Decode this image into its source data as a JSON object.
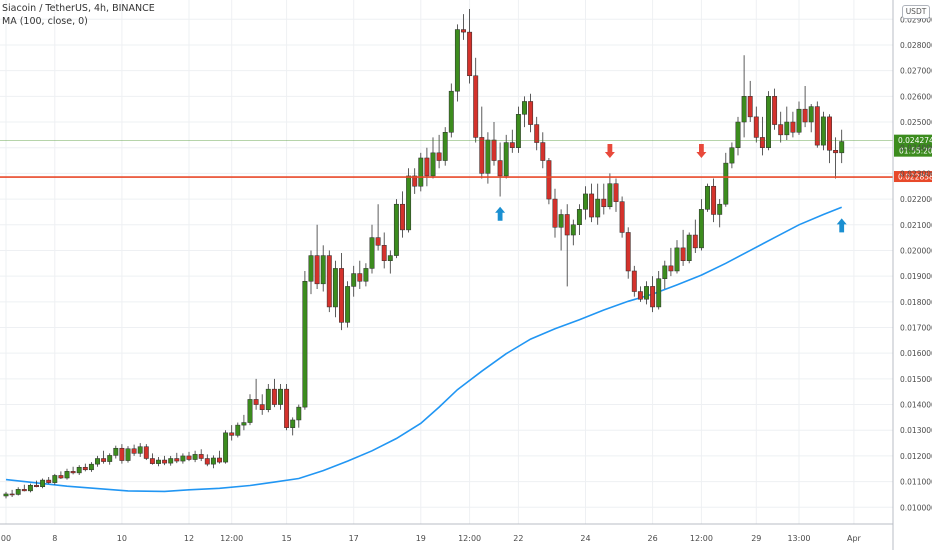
{
  "legend": {
    "symbol_line": "Siacoin / TetherUS, 4h, BINANCE",
    "indicator_line": "MA (100, close, 0)"
  },
  "currency_button": "USDT",
  "colors": {
    "up": "#53b987",
    "up_body": "#3c8c1e",
    "down": "#d4322c",
    "ma": "#2196f3",
    "level": "#e8492a",
    "arrow_up": "#1a8fd1",
    "arrow_down": "#e8493b",
    "grid": "#eef0f3",
    "axis_text": "#4a4a4a"
  },
  "chart_data": {
    "type": "candlestick",
    "title": "Siacoin / TetherUS, 4h, BINANCE",
    "ylim": [
      0.00935,
      0.02975
    ],
    "y_ticks": [
      "0.010000",
      "0.011000",
      "0.012000",
      "0.013000",
      "0.014000",
      "0.015000",
      "0.016000",
      "0.017000",
      "0.018000",
      "0.019000",
      "0.020000",
      "0.021000",
      "0.022000",
      "0.023000",
      "0.024000",
      "0.025000",
      "0.026000",
      "0.027000",
      "0.028000",
      "0.029000"
    ],
    "x_ticks": [
      {
        "label": "00",
        "i": 0
      },
      {
        "label": "8",
        "i": 8
      },
      {
        "label": "10",
        "i": 19
      },
      {
        "label": "12",
        "i": 30
      },
      {
        "label": "12:00",
        "i": 37
      },
      {
        "label": "15",
        "i": 46
      },
      {
        "label": "17",
        "i": 57
      },
      {
        "label": "19",
        "i": 68
      },
      {
        "label": "12:00",
        "i": 76
      },
      {
        "label": "22",
        "i": 84
      },
      {
        "label": "24",
        "i": 95
      },
      {
        "label": "26",
        "i": 106
      },
      {
        "label": "12:00",
        "i": 114
      },
      {
        "label": "29",
        "i": 123
      },
      {
        "label": "13:00",
        "i": 130
      },
      {
        "label": "Apr",
        "i": 139
      }
    ],
    "candles": [
      [
        0.01044,
        0.0106,
        0.01035,
        0.01052
      ],
      [
        0.01052,
        0.01068,
        0.0104,
        0.0105
      ],
      [
        0.0105,
        0.01078,
        0.01046,
        0.0107
      ],
      [
        0.0107,
        0.01088,
        0.01062,
        0.01064
      ],
      [
        0.01064,
        0.01092,
        0.01058,
        0.01086
      ],
      [
        0.01086,
        0.01104,
        0.01078,
        0.0108
      ],
      [
        0.0108,
        0.01112,
        0.01074,
        0.01106
      ],
      [
        0.01106,
        0.01118,
        0.01092,
        0.01096
      ],
      [
        0.01096,
        0.0113,
        0.01088,
        0.01124
      ],
      [
        0.01124,
        0.0114,
        0.0111,
        0.01114
      ],
      [
        0.01114,
        0.0115,
        0.01108,
        0.0114
      ],
      [
        0.0114,
        0.01158,
        0.01128,
        0.01134
      ],
      [
        0.01134,
        0.01164,
        0.01126,
        0.01156
      ],
      [
        0.01156,
        0.0117,
        0.0114,
        0.01146
      ],
      [
        0.01146,
        0.01176,
        0.01138,
        0.01168
      ],
      [
        0.01168,
        0.012,
        0.01158,
        0.0119
      ],
      [
        0.0119,
        0.0122,
        0.0117,
        0.01178
      ],
      [
        0.01178,
        0.0121,
        0.01166,
        0.01202
      ],
      [
        0.01202,
        0.0124,
        0.0119,
        0.0123
      ],
      [
        0.0123,
        0.01246,
        0.0117,
        0.01182
      ],
      [
        0.01182,
        0.01238,
        0.01174,
        0.01228
      ],
      [
        0.01228,
        0.01244,
        0.012,
        0.0121
      ],
      [
        0.0121,
        0.0125,
        0.01196,
        0.01236
      ],
      [
        0.01236,
        0.01246,
        0.01184,
        0.0119
      ],
      [
        0.0119,
        0.0121,
        0.01166,
        0.0117
      ],
      [
        0.0117,
        0.01196,
        0.0116,
        0.01184
      ],
      [
        0.01184,
        0.012,
        0.01164,
        0.01172
      ],
      [
        0.01172,
        0.012,
        0.01162,
        0.0119
      ],
      [
        0.0119,
        0.01212,
        0.01172,
        0.0118
      ],
      [
        0.0118,
        0.0121,
        0.0117,
        0.012
      ],
      [
        0.012,
        0.01216,
        0.0118,
        0.01186
      ],
      [
        0.01186,
        0.0122,
        0.01176,
        0.01206
      ],
      [
        0.01206,
        0.01226,
        0.0118,
        0.0119
      ],
      [
        0.0119,
        0.01206,
        0.0116,
        0.01168
      ],
      [
        0.01168,
        0.01202,
        0.01152,
        0.01192
      ],
      [
        0.01192,
        0.0122,
        0.0117,
        0.01176
      ],
      [
        0.01176,
        0.013,
        0.0117,
        0.0129
      ],
      [
        0.0129,
        0.0132,
        0.0126,
        0.0128
      ],
      [
        0.0128,
        0.0133,
        0.01272,
        0.0132
      ],
      [
        0.0132,
        0.0136,
        0.013,
        0.0133
      ],
      [
        0.0133,
        0.0144,
        0.0132,
        0.0142
      ],
      [
        0.0142,
        0.015,
        0.0138,
        0.014
      ],
      [
        0.014,
        0.0144,
        0.0136,
        0.0138
      ],
      [
        0.0138,
        0.0148,
        0.0137,
        0.0146
      ],
      [
        0.0146,
        0.015,
        0.0139,
        0.014
      ],
      [
        0.014,
        0.0148,
        0.0138,
        0.0146
      ],
      [
        0.0146,
        0.0148,
        0.013,
        0.0131
      ],
      [
        0.0131,
        0.0135,
        0.0128,
        0.0134
      ],
      [
        0.0134,
        0.014,
        0.0131,
        0.0139
      ],
      [
        0.0139,
        0.0192,
        0.0138,
        0.0188
      ],
      [
        0.0188,
        0.02,
        0.0183,
        0.0198
      ],
      [
        0.0198,
        0.021,
        0.0185,
        0.0187
      ],
      [
        0.0187,
        0.0202,
        0.0184,
        0.0198
      ],
      [
        0.0198,
        0.02,
        0.0176,
        0.0178
      ],
      [
        0.0178,
        0.0196,
        0.0174,
        0.0193
      ],
      [
        0.0193,
        0.0199,
        0.0169,
        0.0172
      ],
      [
        0.0172,
        0.0188,
        0.017,
        0.0186
      ],
      [
        0.0186,
        0.0194,
        0.0182,
        0.0191
      ],
      [
        0.0191,
        0.0196,
        0.0185,
        0.0188
      ],
      [
        0.0188,
        0.0195,
        0.0186,
        0.0193
      ],
      [
        0.0193,
        0.021,
        0.0191,
        0.0205
      ],
      [
        0.0205,
        0.0218,
        0.02,
        0.0202
      ],
      [
        0.0202,
        0.0207,
        0.0193,
        0.0196
      ],
      [
        0.0196,
        0.02,
        0.0191,
        0.0198
      ],
      [
        0.0198,
        0.022,
        0.0197,
        0.0218
      ],
      [
        0.0218,
        0.0223,
        0.0205,
        0.0208
      ],
      [
        0.0208,
        0.0232,
        0.0207,
        0.0229
      ],
      [
        0.0229,
        0.0232,
        0.0222,
        0.0225
      ],
      [
        0.0225,
        0.0238,
        0.0223,
        0.0236
      ],
      [
        0.0236,
        0.024,
        0.0225,
        0.0229
      ],
      [
        0.0229,
        0.0244,
        0.0228,
        0.0238
      ],
      [
        0.0238,
        0.0245,
        0.0232,
        0.0235
      ],
      [
        0.0235,
        0.0248,
        0.0233,
        0.0246
      ],
      [
        0.0246,
        0.0265,
        0.0244,
        0.0262
      ],
      [
        0.0262,
        0.0288,
        0.0258,
        0.0286
      ],
      [
        0.0286,
        0.0292,
        0.0282,
        0.0285
      ],
      [
        0.0285,
        0.0294,
        0.0265,
        0.0268
      ],
      [
        0.0268,
        0.0275,
        0.0242,
        0.0244
      ],
      [
        0.0244,
        0.0256,
        0.0228,
        0.023
      ],
      [
        0.023,
        0.0246,
        0.0226,
        0.0243
      ],
      [
        0.0243,
        0.025,
        0.0233,
        0.0235
      ],
      [
        0.0235,
        0.0242,
        0.0221,
        0.0229
      ],
      [
        0.0229,
        0.0245,
        0.0228,
        0.0242
      ],
      [
        0.0242,
        0.0247,
        0.0238,
        0.024
      ],
      [
        0.024,
        0.0256,
        0.0238,
        0.0253
      ],
      [
        0.0253,
        0.026,
        0.0248,
        0.0258
      ],
      [
        0.0258,
        0.0261,
        0.0246,
        0.0249
      ],
      [
        0.0249,
        0.0252,
        0.0239,
        0.0242
      ],
      [
        0.0242,
        0.0246,
        0.0232,
        0.0235
      ],
      [
        0.0235,
        0.0236,
        0.0218,
        0.022
      ],
      [
        0.022,
        0.0224,
        0.0205,
        0.0209
      ],
      [
        0.0209,
        0.0216,
        0.02,
        0.0214
      ],
      [
        0.0214,
        0.0218,
        0.0186,
        0.0206
      ],
      [
        0.0206,
        0.0212,
        0.0202,
        0.021
      ],
      [
        0.021,
        0.0218,
        0.0206,
        0.0216
      ],
      [
        0.0216,
        0.0225,
        0.0212,
        0.0222
      ],
      [
        0.0222,
        0.0226,
        0.0211,
        0.0213
      ],
      [
        0.0213,
        0.0226,
        0.021,
        0.022
      ],
      [
        0.022,
        0.0226,
        0.0214,
        0.0217
      ],
      [
        0.0217,
        0.023,
        0.0216,
        0.0226
      ],
      [
        0.0226,
        0.0228,
        0.0215,
        0.0219
      ],
      [
        0.0219,
        0.0221,
        0.0205,
        0.0207
      ],
      [
        0.0207,
        0.0209,
        0.0189,
        0.0192
      ],
      [
        0.0192,
        0.0194,
        0.0182,
        0.0184
      ],
      [
        0.0184,
        0.0186,
        0.018,
        0.0181
      ],
      [
        0.0181,
        0.0188,
        0.0179,
        0.0186
      ],
      [
        0.0186,
        0.019,
        0.0176,
        0.0178
      ],
      [
        0.0178,
        0.0192,
        0.0177,
        0.0189
      ],
      [
        0.0189,
        0.0196,
        0.0185,
        0.0194
      ],
      [
        0.0194,
        0.0201,
        0.019,
        0.0192
      ],
      [
        0.0192,
        0.0204,
        0.0191,
        0.0201
      ],
      [
        0.0201,
        0.0208,
        0.0194,
        0.0196
      ],
      [
        0.0196,
        0.0207,
        0.0195,
        0.0206
      ],
      [
        0.0206,
        0.0212,
        0.0199,
        0.0201
      ],
      [
        0.0201,
        0.022,
        0.02,
        0.0216
      ],
      [
        0.0216,
        0.0226,
        0.0215,
        0.0225
      ],
      [
        0.0225,
        0.0228,
        0.0211,
        0.0214
      ],
      [
        0.0214,
        0.022,
        0.0209,
        0.0218
      ],
      [
        0.0218,
        0.0238,
        0.0217,
        0.0234
      ],
      [
        0.0234,
        0.0242,
        0.0232,
        0.024
      ],
      [
        0.024,
        0.0252,
        0.0237,
        0.025
      ],
      [
        0.025,
        0.0276,
        0.0244,
        0.026
      ],
      [
        0.026,
        0.0266,
        0.025,
        0.0252
      ],
      [
        0.0252,
        0.0256,
        0.0242,
        0.0244
      ],
      [
        0.0244,
        0.0252,
        0.0237,
        0.024
      ],
      [
        0.024,
        0.0262,
        0.0239,
        0.026
      ],
      [
        0.026,
        0.0263,
        0.0247,
        0.0249
      ],
      [
        0.0249,
        0.0254,
        0.0242,
        0.0245
      ],
      [
        0.0245,
        0.0256,
        0.0243,
        0.025
      ],
      [
        0.025,
        0.0254,
        0.0244,
        0.0246
      ],
      [
        0.0246,
        0.0258,
        0.0245,
        0.0255
      ],
      [
        0.0255,
        0.0264,
        0.0248,
        0.025
      ],
      [
        0.025,
        0.0257,
        0.0246,
        0.0256
      ],
      [
        0.0256,
        0.0258,
        0.024,
        0.0241
      ],
      [
        0.0241,
        0.0254,
        0.0239,
        0.0252
      ],
      [
        0.0252,
        0.0253,
        0.0234,
        0.0239
      ],
      [
        0.0239,
        0.0244,
        0.0228,
        0.0238
      ],
      [
        0.0238,
        0.0247,
        0.0234,
        0.02424
      ]
    ],
    "ma_100": [
      [
        0,
        0.01108
      ],
      [
        10,
        0.01082
      ],
      [
        20,
        0.01064
      ],
      [
        26,
        0.01062
      ],
      [
        30,
        0.01068
      ],
      [
        35,
        0.01074
      ],
      [
        40,
        0.01085
      ],
      [
        44,
        0.01098
      ],
      [
        48,
        0.01112
      ],
      [
        52,
        0.01143
      ],
      [
        56,
        0.0118
      ],
      [
        60,
        0.0122
      ],
      [
        64,
        0.01268
      ],
      [
        68,
        0.01327
      ],
      [
        71,
        0.0139
      ],
      [
        74,
        0.01458
      ],
      [
        78,
        0.0153
      ],
      [
        82,
        0.01598
      ],
      [
        86,
        0.01655
      ],
      [
        90,
        0.01695
      ],
      [
        94,
        0.0173
      ],
      [
        98,
        0.01768
      ],
      [
        102,
        0.01802
      ],
      [
        106,
        0.0183
      ],
      [
        110,
        0.01866
      ],
      [
        114,
        0.01904
      ],
      [
        118,
        0.0195
      ],
      [
        122,
        0.02
      ],
      [
        126,
        0.0205
      ],
      [
        130,
        0.021
      ],
      [
        134,
        0.0214
      ],
      [
        137,
        0.02168
      ]
    ],
    "horizontal_lines": [
      {
        "price": 0.022858,
        "label": "0.022858",
        "color": "#e8492a"
      },
      {
        "price": 0.024274,
        "label": "0.024274",
        "sub_label": "01:55:20",
        "color": "#3c8c1e"
      }
    ],
    "annotations": [
      {
        "type": "arrow-up",
        "i": 81,
        "price": 0.0217
      },
      {
        "type": "arrow-down",
        "i": 99,
        "price": 0.0236
      },
      {
        "type": "arrow-down",
        "i": 114,
        "price": 0.0236
      },
      {
        "type": "arrow-up",
        "i": 137,
        "price": 0.02125
      }
    ]
  }
}
